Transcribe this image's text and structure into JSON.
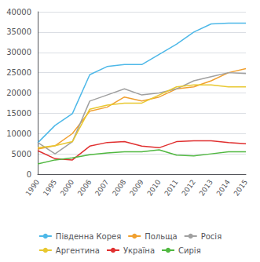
{
  "chart_data": {
    "type": "line",
    "categories": [
      "1990",
      "1995",
      "2000",
      "2006",
      "2007",
      "2008",
      "2009",
      "2010",
      "2011",
      "2012",
      "2013",
      "2014",
      "2015"
    ],
    "series": [
      {
        "name": "Південна Корея",
        "color": "#4db8e8",
        "values": [
          7700,
          12000,
          14900,
          24500,
          26500,
          27000,
          27000,
          29500,
          32000,
          35000,
          37000,
          37200,
          37200
        ]
      },
      {
        "name": "Польща",
        "color": "#f0a030",
        "values": [
          6200,
          7000,
          10000,
          15500,
          16500,
          19000,
          18000,
          19000,
          21000,
          21500,
          23000,
          25000,
          26000
        ]
      },
      {
        "name": "Росія",
        "color": "#a0a0a0",
        "values": [
          7800,
          5000,
          8000,
          18000,
          19500,
          21000,
          19500,
          20000,
          21000,
          23000,
          24000,
          25000,
          24800
        ]
      },
      {
        "name": "Аргентина",
        "color": "#e8c830",
        "values": [
          6500,
          7000,
          8000,
          16000,
          17000,
          17500,
          17500,
          19500,
          21500,
          22000,
          22000,
          21500,
          21500
        ]
      },
      {
        "name": "Україна",
        "color": "#e03030",
        "values": [
          5800,
          3800,
          3500,
          6900,
          7800,
          8000,
          6900,
          6500,
          8000,
          8200,
          8200,
          7800,
          7500
        ]
      },
      {
        "name": "Сирія",
        "color": "#50b840",
        "values": [
          2500,
          3500,
          4000,
          4800,
          5200,
          5500,
          5500,
          6000,
          4700,
          4500,
          5000,
          5500,
          5500
        ]
      }
    ],
    "ylim": [
      0,
      40000
    ],
    "yticks": [
      0,
      5000,
      10000,
      15000,
      20000,
      25000,
      30000,
      35000,
      40000
    ],
    "grid": true,
    "legend": "bottom"
  }
}
